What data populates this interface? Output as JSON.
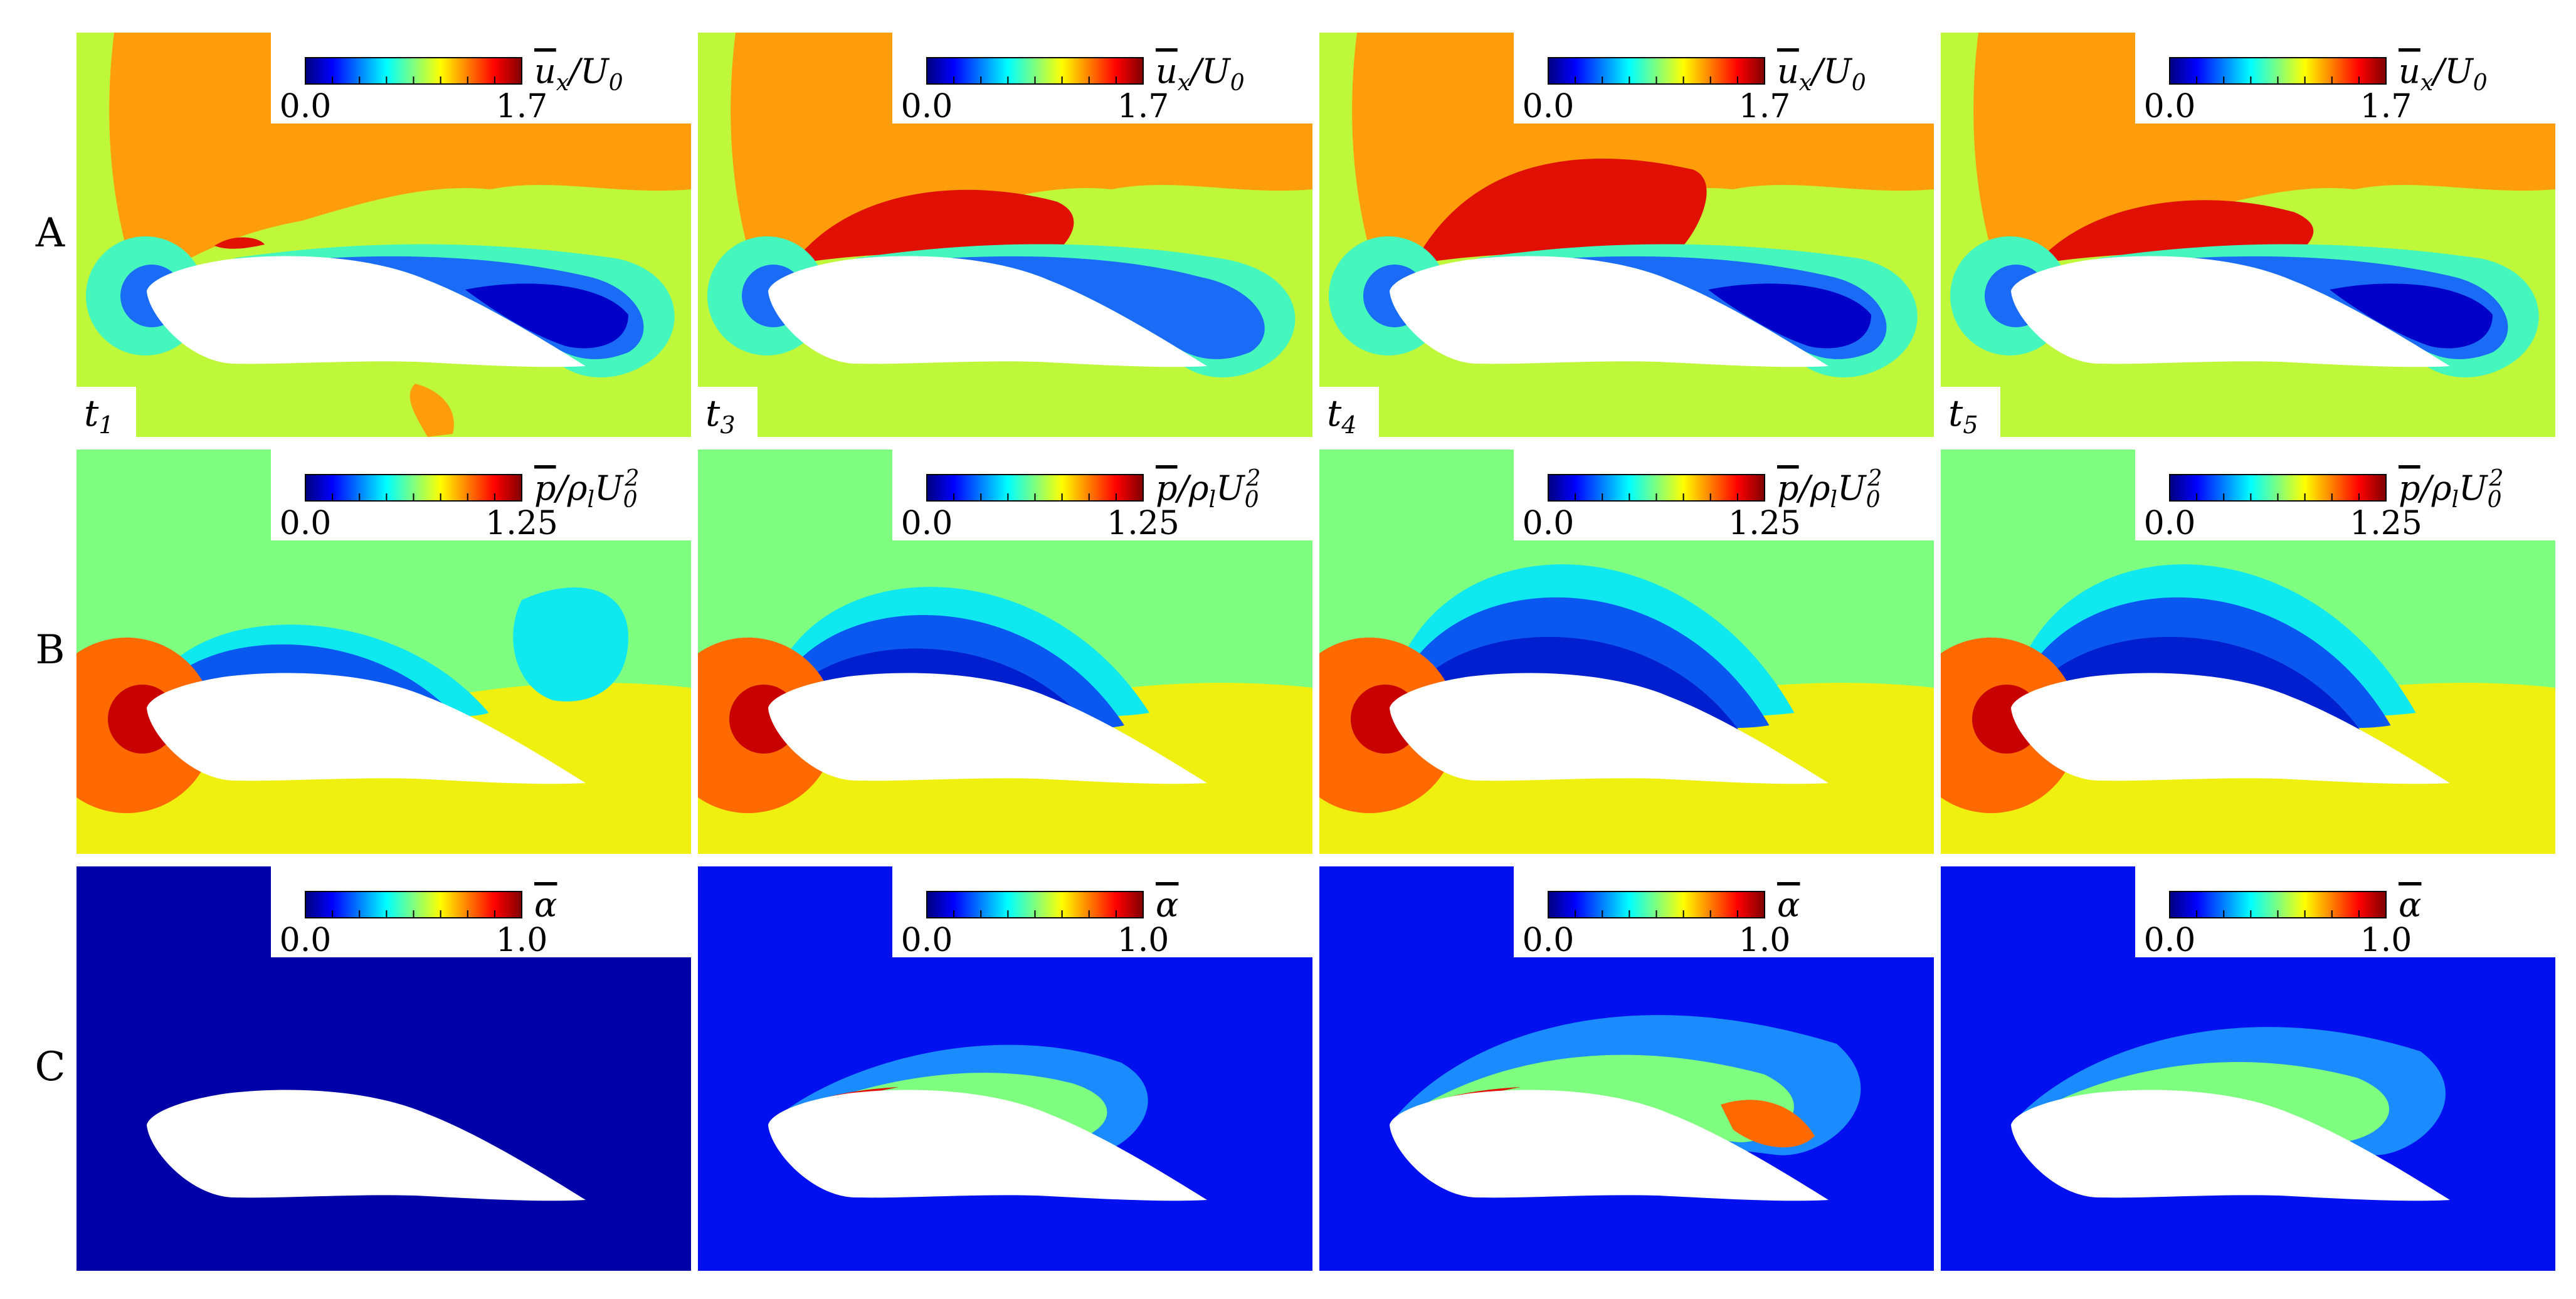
{
  "figure": {
    "rows": [
      {
        "label": "A",
        "field": "u",
        "colorbar": {
          "min": "0.0",
          "max": "1.7",
          "label_main": "u",
          "label_sub": "x",
          "label_rest": "/U",
          "label_rest_sub": "0"
        }
      },
      {
        "label": "B",
        "field": "p",
        "colorbar": {
          "min": "0.0",
          "max": "1.25",
          "label_main": "p",
          "label_rest": "/ρ",
          "label_rest_sub": "l",
          "label_tail": "U",
          "label_tail_sub": "0",
          "label_tail_sup": "2"
        }
      },
      {
        "label": "C",
        "field": "alpha",
        "colorbar": {
          "min": "0.0",
          "max": "1.0",
          "label_main": "α"
        }
      }
    ],
    "columns": [
      {
        "time_main": "t",
        "time_sub": "1"
      },
      {
        "time_main": "t",
        "time_sub": "3"
      },
      {
        "time_main": "t",
        "time_sub": "4"
      },
      {
        "time_main": "t",
        "time_sub": "5"
      }
    ],
    "colors": {
      "jet": [
        "#00007f",
        "#0000ff",
        "#007fff",
        "#00ffff",
        "#7fff7f",
        "#ffff00",
        "#ff7f00",
        "#ff0000",
        "#7f0000"
      ],
      "u_background": "#bff73a",
      "u_upper": "#ff9e0a",
      "u_fast": "#e01005",
      "u_wake_teal": "#45f7bd",
      "u_wake_blue": "#1a6cf7",
      "u_wake_deep": "#0000c8",
      "p_upper": "#7fff7f",
      "p_lower": "#f0f010",
      "p_cyan": "#10e8f0",
      "p_blue": "#0a58f0",
      "p_deep": "#0020d0",
      "p_stag_orange": "#ff6a00",
      "p_stag_red": "#c80000",
      "alpha_dark": "#0000a8",
      "alpha_bg": "#0010ee",
      "airfoil": "#ffffff"
    }
  }
}
